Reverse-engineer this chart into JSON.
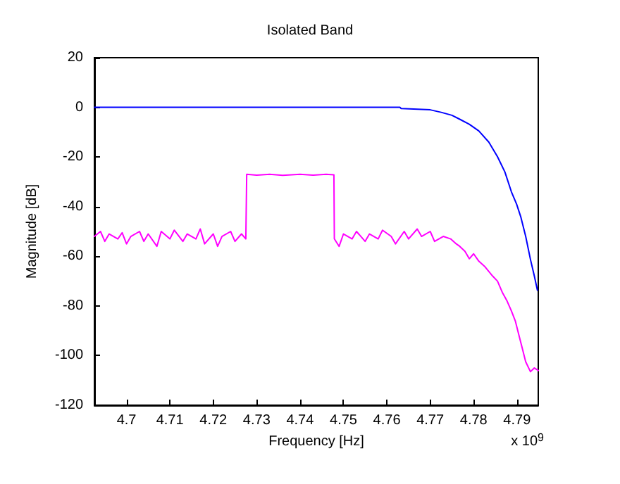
{
  "chart_data": {
    "type": "line",
    "title": "Isolated Band",
    "xlabel": "Frequency [Hz]",
    "ylabel": "Magnitude [dB]",
    "annotations": [
      "x 10$^{9}$"
    ],
    "xlim": [
      4.6926,
      4.7949
    ],
    "xticks": [
      4.7,
      4.71,
      4.72,
      4.73,
      4.74,
      4.75,
      4.76,
      4.77,
      4.78,
      4.79
    ],
    "ylim": [
      -120,
      20
    ],
    "yticks": [
      20,
      0,
      -20,
      -40,
      -60,
      -80,
      -100,
      -120
    ],
    "grid": false,
    "marker": "none",
    "line_style": "solid",
    "series": [
      {
        "color": "#ff00ff",
        "x": [
          4.6926,
          4.694,
          4.695,
          4.696,
          4.698,
          4.699,
          4.7,
          4.701,
          4.703,
          4.704,
          4.705,
          4.707,
          4.708,
          4.71,
          4.711,
          4.713,
          4.714,
          4.716,
          4.717,
          4.718,
          4.72,
          4.721,
          4.722,
          4.724,
          4.725,
          4.7265,
          4.7275,
          4.7277,
          4.73,
          4.733,
          4.736,
          4.74,
          4.743,
          4.746,
          4.7478,
          4.7479,
          4.749,
          4.75,
          4.752,
          4.753,
          4.755,
          4.756,
          4.758,
          4.759,
          4.761,
          4.762,
          4.764,
          4.765,
          4.767,
          4.768,
          4.77,
          4.771,
          4.773,
          4.7747,
          4.776,
          4.7768,
          4.778,
          4.779,
          4.78,
          4.7812,
          4.7825,
          4.7844,
          4.7855,
          4.7866,
          4.7877,
          4.7887,
          4.7896,
          4.7904,
          4.7912,
          4.792,
          4.7931,
          4.794,
          4.7949
        ],
        "values": [
          -52,
          -50,
          -54,
          -51,
          -53,
          -50.5,
          -55,
          -52,
          -50,
          -54,
          -51,
          -56,
          -50,
          -53,
          -49.5,
          -54,
          -51,
          -53,
          -49,
          -55,
          -51,
          -56,
          -52,
          -50,
          -54,
          -51,
          -53,
          -27,
          -27.3,
          -27,
          -27.4,
          -27,
          -27.3,
          -27,
          -27.2,
          -53,
          -56,
          -51,
          -53,
          -50,
          -54,
          -51,
          -53,
          -49.5,
          -52,
          -55,
          -50,
          -53,
          -49,
          -52,
          -50,
          -54,
          -52,
          -53,
          -55,
          -56,
          -58,
          -61,
          -59,
          -62,
          -64,
          -68,
          -70,
          -74.5,
          -78,
          -82,
          -86,
          -91.5,
          -97,
          -102.5,
          -106.5,
          -105,
          -106
        ]
      },
      {
        "color": "#0000ff",
        "x": [
          4.6926,
          4.763,
          4.7633,
          4.77,
          4.7725,
          4.775,
          4.7768,
          4.779,
          4.7812,
          4.7835,
          4.7855,
          4.7872,
          4.7887,
          4.7899,
          4.7909,
          4.792,
          4.7931,
          4.794,
          4.7947
        ],
        "values": [
          0,
          0,
          -0.5,
          -1,
          -2,
          -3.2,
          -4.8,
          -6.8,
          -9.5,
          -14,
          -19.9,
          -26,
          -34,
          -39,
          -44.3,
          -52,
          -61.3,
          -68,
          -73.7
        ]
      }
    ]
  }
}
